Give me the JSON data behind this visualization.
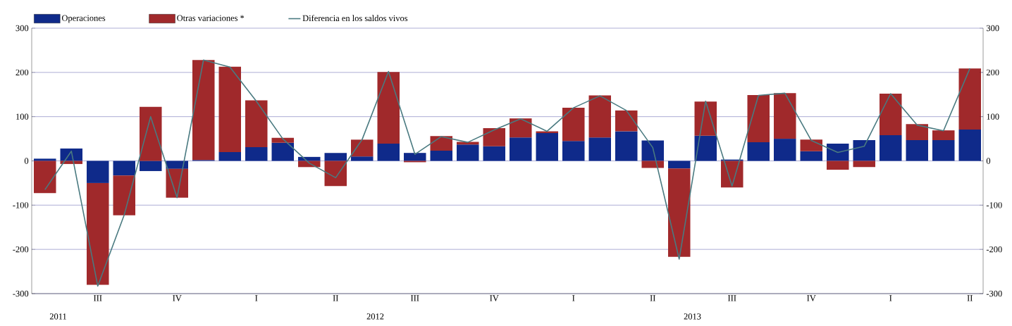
{
  "chart_data": {
    "type": "bar",
    "stacked": true,
    "categories": [
      null,
      null,
      "III",
      null,
      null,
      "IV",
      null,
      null,
      "I",
      null,
      null,
      "II",
      null,
      null,
      "III",
      null,
      null,
      "IV",
      null,
      null,
      "I",
      null,
      null,
      "II",
      null,
      null,
      "III",
      null,
      null,
      "IV",
      null,
      null,
      "I",
      null,
      null,
      "II"
    ],
    "series": [
      {
        "name": "Operaciones",
        "color": "#0f2a8a",
        "values": [
          5,
          28,
          -50,
          -33,
          -23,
          -18,
          2,
          20,
          31,
          41,
          9,
          18,
          10,
          39,
          18,
          23,
          37,
          33,
          53,
          63,
          45,
          53,
          67,
          46,
          -17,
          57,
          3,
          42,
          50,
          22,
          39,
          47,
          58,
          47,
          47,
          71
        ]
      },
      {
        "name": "Otras variaciones *",
        "color": "#a0292b",
        "values": [
          -73,
          -7,
          -230,
          -90,
          122,
          -65,
          226,
          193,
          106,
          11,
          -14,
          -57,
          38,
          162,
          -3,
          33,
          6,
          41,
          43,
          4,
          75,
          95,
          47,
          -16,
          -200,
          77,
          -60,
          107,
          103,
          26,
          -20,
          -14,
          94,
          36,
          22,
          138
        ]
      },
      {
        "name": "Diferencia en los saldos vivos",
        "type": "line",
        "color": "#4a7a80",
        "values": [
          -65,
          22,
          -283,
          -122,
          100,
          -83,
          228,
          212,
          135,
          50,
          -5,
          -38,
          48,
          202,
          15,
          55,
          42,
          70,
          95,
          67,
          120,
          147,
          114,
          30,
          -222,
          135,
          -57,
          148,
          153,
          46,
          19,
          33,
          152,
          81,
          68,
          209
        ]
      }
    ],
    "ylim": [
      -300,
      300
    ],
    "yticks": [
      -300,
      -200,
      -100,
      0,
      100,
      200,
      300
    ],
    "y2lim": [
      -300,
      300
    ],
    "y2ticks": [
      -300,
      -200,
      -100,
      0,
      100,
      200,
      300
    ],
    "grid": "y",
    "legend": "top",
    "annotations": [
      "2011",
      "2012",
      "2013"
    ]
  }
}
